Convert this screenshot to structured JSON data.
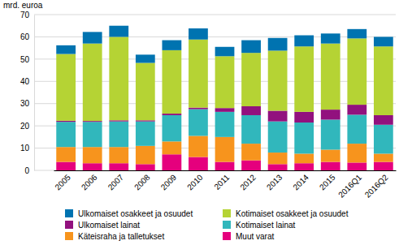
{
  "chart_data": {
    "type": "bar",
    "stacked": true,
    "grid": true,
    "legend": "bottom",
    "y_label": "mrd. euroa",
    "categories": [
      "2005",
      "2006",
      "2007",
      "2008",
      "2009",
      "2010",
      "2011",
      "2012",
      "2013",
      "2014",
      "2015",
      "2016Q1",
      "2016Q2"
    ],
    "ylim": [
      0,
      70
    ],
    "yticks": [
      0,
      10,
      20,
      30,
      40,
      50,
      60,
      70
    ],
    "series": [
      {
        "name": "Muut varat",
        "color": "#e5007d",
        "values": [
          3.8,
          3.2,
          3.2,
          2.8,
          7.2,
          6.0,
          3.8,
          4.5,
          2.8,
          3.2,
          3.8,
          3.5,
          3.8
        ]
      },
      {
        "name": "Käteisraha ja talletukset",
        "color": "#f7941d",
        "values": [
          6.7,
          7.3,
          7.3,
          8.2,
          5.8,
          9.5,
          11.2,
          7.5,
          5.2,
          4.3,
          5.5,
          8.5,
          3.7
        ]
      },
      {
        "name": "Kotimaiset lainat",
        "color": "#31b7bc",
        "values": [
          11.3,
          11.3,
          11.5,
          11.0,
          11.8,
          12.0,
          11.3,
          12.8,
          14.0,
          14.0,
          13.5,
          13.0,
          13.0
        ]
      },
      {
        "name": "Ulkomaiset lainat",
        "color": "#92117e",
        "values": [
          0.5,
          0.4,
          0.5,
          0.5,
          0.7,
          0.7,
          1.7,
          4.0,
          4.8,
          4.8,
          4.5,
          4.5,
          4.3
        ]
      },
      {
        "name": "Kotimaiset osakkeet ja osuudet",
        "color": "#b5d334",
        "values": [
          30.0,
          34.8,
          37.5,
          25.8,
          28.5,
          30.6,
          23.3,
          24.0,
          27.0,
          29.4,
          29.7,
          29.8,
          30.9
        ]
      },
      {
        "name": "Ulkomaiset osakkeet ja osuudet",
        "color": "#0073b0",
        "values": [
          3.9,
          5.2,
          5.0,
          3.7,
          4.5,
          5.0,
          4.2,
          5.7,
          5.7,
          5.0,
          4.5,
          4.2,
          4.3
        ]
      }
    ]
  }
}
